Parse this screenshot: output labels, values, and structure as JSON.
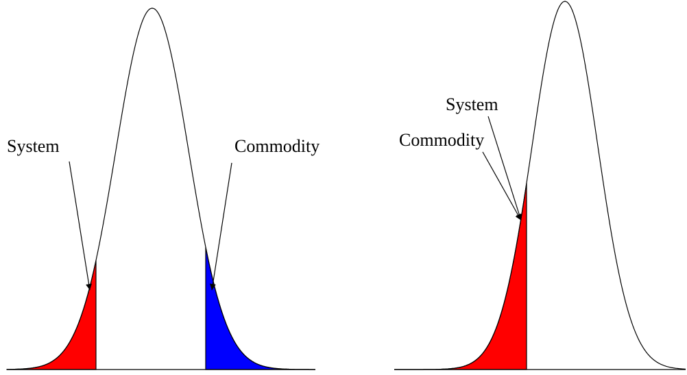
{
  "panels": [
    {
      "labels": [
        "System",
        "Commodity"
      ]
    },
    {
      "labels": [
        "System",
        "Commodity"
      ]
    }
  ]
}
